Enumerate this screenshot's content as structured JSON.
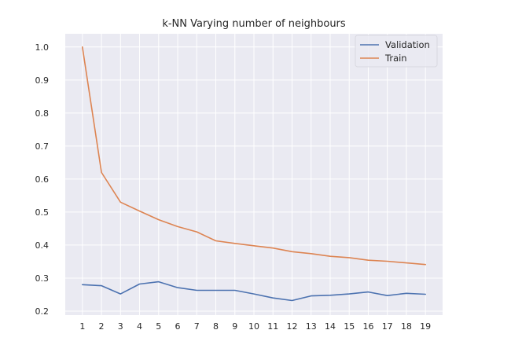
{
  "chart_data": {
    "type": "line",
    "title": "k-NN Varying number of neighbours",
    "xlabel": "",
    "ylabel": "",
    "x": [
      1,
      2,
      3,
      4,
      5,
      6,
      7,
      8,
      9,
      10,
      11,
      12,
      13,
      14,
      15,
      16,
      17,
      18,
      19
    ],
    "series": [
      {
        "name": "Validation",
        "color": "#4c72b0",
        "values": [
          0.28,
          0.277,
          0.252,
          0.282,
          0.289,
          0.271,
          0.263,
          0.263,
          0.263,
          0.252,
          0.24,
          0.232,
          0.246,
          0.248,
          0.252,
          0.258,
          0.247,
          0.254,
          0.251
        ]
      },
      {
        "name": "Train",
        "color": "#dd8452",
        "values": [
          1.0,
          0.62,
          0.53,
          0.503,
          0.477,
          0.456,
          0.44,
          0.413,
          0.405,
          0.398,
          0.391,
          0.38,
          0.374,
          0.366,
          0.362,
          0.354,
          0.351,
          0.346,
          0.341
        ]
      }
    ],
    "xlim": [
      0.1,
      19.9
    ],
    "ylim": [
      0.188,
      1.04
    ],
    "yticks": [
      "0.2",
      "0.3",
      "0.4",
      "0.5",
      "0.6",
      "0.7",
      "0.8",
      "0.9",
      "1.0"
    ],
    "xticks": [
      "1",
      "2",
      "3",
      "4",
      "5",
      "6",
      "7",
      "8",
      "9",
      "10",
      "11",
      "12",
      "13",
      "14",
      "15",
      "16",
      "17",
      "18",
      "19"
    ],
    "grid": true,
    "legend_position": "top-right",
    "background_color": "#eaeaf2",
    "grid_color": "#ffffff"
  }
}
